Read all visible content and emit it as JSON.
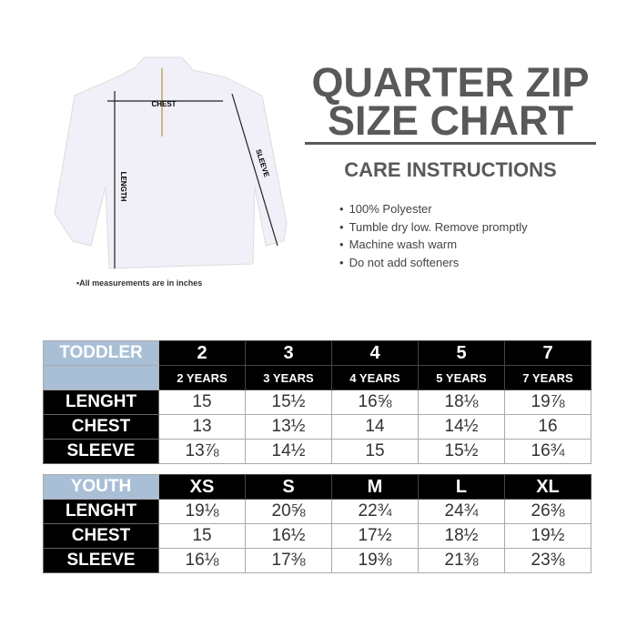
{
  "title": {
    "line1": "QUARTER ZIP",
    "line2": "SIZE CHART"
  },
  "care": {
    "heading": "CARE INSTRUCTIONS",
    "items": [
      "100% Polyester",
      "Tumble dry low. Remove promptly",
      "Machine wash warm",
      "Do not add softeners"
    ]
  },
  "diagram": {
    "chest": "CHEST",
    "length": "LENGTH",
    "sleeve": "SLEEVE",
    "note": "•All measurements are in inches"
  },
  "colors": {
    "title": "#58595b",
    "header_blue": "#a9bfd6",
    "header_black": "#000000"
  },
  "toddler": {
    "label": "TODDLER",
    "sizes": [
      "2",
      "3",
      "4",
      "5",
      "7"
    ],
    "ages": [
      "2 YEARS",
      "3 YEARS",
      "4 YEARS",
      "5 YEARS",
      "7 YEARS"
    ],
    "rows": [
      {
        "label": "LENGHT",
        "values": [
          "15",
          "15½",
          "16⅝",
          "18⅛",
          "19⅞"
        ]
      },
      {
        "label": "CHEST",
        "values": [
          "13",
          "13½",
          "14",
          "14½",
          "16"
        ]
      },
      {
        "label": "SLEEVE",
        "values": [
          "13⅞",
          "14½",
          "15",
          "15½",
          "16¾"
        ]
      }
    ]
  },
  "youth": {
    "label": "YOUTH",
    "sizes": [
      "XS",
      "S",
      "M",
      "L",
      "XL"
    ],
    "rows": [
      {
        "label": "LENGHT",
        "values": [
          "19⅛",
          "20⅝",
          "22¾",
          "24¾",
          "26⅜"
        ]
      },
      {
        "label": "CHEST",
        "values": [
          "15",
          "16½",
          "17½",
          "18½",
          "19½"
        ]
      },
      {
        "label": "SLEEVE",
        "values": [
          "16⅛",
          "17⅜",
          "19⅜",
          "21⅜",
          "23⅜"
        ]
      }
    ]
  }
}
